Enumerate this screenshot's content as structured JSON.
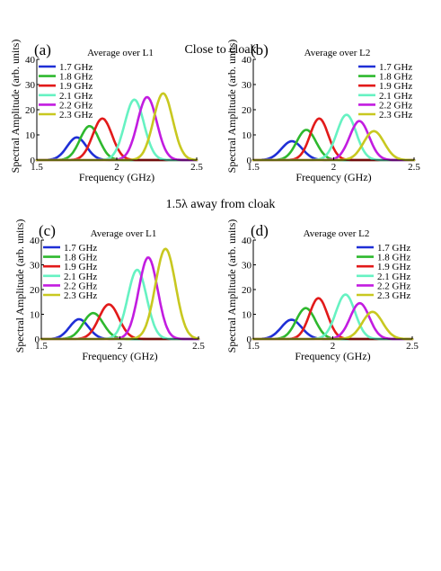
{
  "figure": {
    "top_title": "Close to cloak",
    "bottom_title": "1.5λ away from cloak"
  },
  "chart_data": [
    {
      "type": "line",
      "panel": "(a)",
      "title": "Average over L1",
      "xlabel": "Frequency (GHz)",
      "ylabel": "Spectral Amplitude (arb. units)",
      "xlim": [
        1.5,
        2.5
      ],
      "ylim": [
        0,
        40
      ],
      "xticks": [
        "1.5",
        "2",
        "2.5"
      ],
      "yticks": [
        "0",
        "10",
        "20",
        "30",
        "40"
      ],
      "legend_position": "top-left",
      "series": [
        {
          "name": "1.7 GHz",
          "color": "#1f2fd6",
          "peak_x": 1.75,
          "peak_y": 9,
          "width": 0.085
        },
        {
          "name": "1.8 GHz",
          "color": "#2eb82e",
          "peak_x": 1.83,
          "peak_y": 13.5,
          "width": 0.085
        },
        {
          "name": "1.9 GHz",
          "color": "#e21a1a",
          "peak_x": 1.91,
          "peak_y": 16.5,
          "width": 0.085
        },
        {
          "name": "2.1 GHz",
          "color": "#66f2c2",
          "peak_x": 2.11,
          "peak_y": 24,
          "width": 0.085
        },
        {
          "name": "2.2 GHz",
          "color": "#c21ce0",
          "peak_x": 2.19,
          "peak_y": 25,
          "width": 0.085
        },
        {
          "name": "2.3 GHz",
          "color": "#c8c820",
          "peak_x": 2.29,
          "peak_y": 26.5,
          "width": 0.085
        }
      ]
    },
    {
      "type": "line",
      "panel": "(b)",
      "title": "Average over L2",
      "xlabel": "Frequency (GHz)",
      "ylabel": "Spectral Amplitude (arb. units)",
      "xlim": [
        1.5,
        2.5
      ],
      "ylim": [
        0,
        40
      ],
      "xticks": [
        "1.5",
        "2",
        "2.5"
      ],
      "yticks": [
        "0",
        "10",
        "20",
        "30",
        "40"
      ],
      "legend_position": "top-right",
      "series": [
        {
          "name": "1.7 GHz",
          "color": "#1f2fd6",
          "peak_x": 1.74,
          "peak_y": 7.5,
          "width": 0.09
        },
        {
          "name": "1.8 GHz",
          "color": "#2eb82e",
          "peak_x": 1.83,
          "peak_y": 12,
          "width": 0.085
        },
        {
          "name": "1.9 GHz",
          "color": "#e21a1a",
          "peak_x": 1.91,
          "peak_y": 16.5,
          "width": 0.08
        },
        {
          "name": "2.1 GHz",
          "color": "#66f2c2",
          "peak_x": 2.08,
          "peak_y": 18,
          "width": 0.085
        },
        {
          "name": "2.2 GHz",
          "color": "#c21ce0",
          "peak_x": 2.16,
          "peak_y": 15.5,
          "width": 0.085
        },
        {
          "name": "2.3 GHz",
          "color": "#c8c820",
          "peak_x": 2.25,
          "peak_y": 11.5,
          "width": 0.09
        }
      ]
    },
    {
      "type": "line",
      "panel": "(c)",
      "title": "Average over L1",
      "xlabel": "Frequency (GHz)",
      "ylabel": "Spectral Amplitude (arb. units)",
      "xlim": [
        1.5,
        2.5
      ],
      "ylim": [
        0,
        40
      ],
      "xticks": [
        "1.5",
        "2",
        "2.5"
      ],
      "yticks": [
        "0",
        "10",
        "20",
        "30",
        "40"
      ],
      "legend_position": "top-left",
      "series": [
        {
          "name": "1.7 GHz",
          "color": "#1f2fd6",
          "peak_x": 1.74,
          "peak_y": 8,
          "width": 0.085
        },
        {
          "name": "1.8 GHz",
          "color": "#2eb82e",
          "peak_x": 1.83,
          "peak_y": 10.5,
          "width": 0.09
        },
        {
          "name": "1.9 GHz",
          "color": "#e21a1a",
          "peak_x": 1.93,
          "peak_y": 14,
          "width": 0.09
        },
        {
          "name": "2.1 GHz",
          "color": "#66f2c2",
          "peak_x": 2.11,
          "peak_y": 28,
          "width": 0.085
        },
        {
          "name": "2.2 GHz",
          "color": "#c21ce0",
          "peak_x": 2.18,
          "peak_y": 33,
          "width": 0.085
        },
        {
          "name": "2.3 GHz",
          "color": "#c8c820",
          "peak_x": 2.29,
          "peak_y": 36.5,
          "width": 0.09
        }
      ]
    },
    {
      "type": "line",
      "panel": "(d)",
      "title": "Average over L2",
      "xlabel": "Frequency (GHz)",
      "ylabel": "Spectral Amplitude (arb. units)",
      "xlim": [
        1.5,
        2.5
      ],
      "ylim": [
        0,
        40
      ],
      "xticks": [
        "1.5",
        "2",
        "2.5"
      ],
      "yticks": [
        "0",
        "10",
        "20",
        "30",
        "40"
      ],
      "legend_position": "top-right",
      "series": [
        {
          "name": "1.7 GHz",
          "color": "#1f2fd6",
          "peak_x": 1.74,
          "peak_y": 7.8,
          "width": 0.09
        },
        {
          "name": "1.8 GHz",
          "color": "#2eb82e",
          "peak_x": 1.83,
          "peak_y": 12.5,
          "width": 0.085
        },
        {
          "name": "1.9 GHz",
          "color": "#e21a1a",
          "peak_x": 1.91,
          "peak_y": 16.5,
          "width": 0.08
        },
        {
          "name": "2.1 GHz",
          "color": "#66f2c2",
          "peak_x": 2.08,
          "peak_y": 18,
          "width": 0.085
        },
        {
          "name": "2.2 GHz",
          "color": "#c21ce0",
          "peak_x": 2.17,
          "peak_y": 14.5,
          "width": 0.085
        },
        {
          "name": "2.3 GHz",
          "color": "#c8c820",
          "peak_x": 2.25,
          "peak_y": 11,
          "width": 0.09
        }
      ]
    }
  ]
}
